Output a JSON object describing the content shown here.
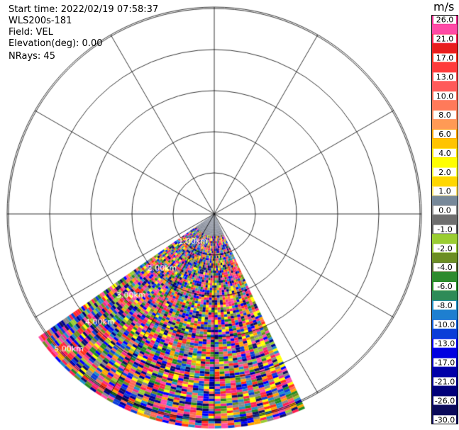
{
  "header": {
    "start_time": "Start time: 2022/02/19 07:58:37",
    "instrument": "WLS200s-181",
    "field": "Field: VEL",
    "elevation": "Elevation(deg): 0.00",
    "nrays": "NRays: 45"
  },
  "colorbar": {
    "unit": "m/s",
    "bins": [
      {
        "label": "26.0",
        "color": "#f02a8f"
      },
      {
        "label": "",
        "color": "#ff4aa6"
      },
      {
        "label": "21.0",
        "color": "#ff1f4f"
      },
      {
        "label": "",
        "color": "#e81e1e"
      },
      {
        "label": "17.0",
        "color": "#ff2e1a"
      },
      {
        "label": "",
        "color": "#ff3b3b"
      },
      {
        "label": "13.0",
        "color": "#ff4a4a"
      },
      {
        "label": "",
        "color": "#ff5a5a"
      },
      {
        "label": "10.0",
        "color": "#ff6a55"
      },
      {
        "label": "",
        "color": "#ff7a5a"
      },
      {
        "label": "8.0",
        "color": "#ff8a60"
      },
      {
        "label": "",
        "color": "#ff9a55"
      },
      {
        "label": "6.0",
        "color": "#ffa500"
      },
      {
        "label": "",
        "color": "#ffc400"
      },
      {
        "label": "4.0",
        "color": "#ffe400"
      },
      {
        "label": "",
        "color": "#ffff00"
      },
      {
        "label": "2.0",
        "color": "#ffff33"
      },
      {
        "label": "",
        "color": "#ffd700"
      },
      {
        "label": "1.0",
        "color": "#ffe066"
      },
      {
        "label": "",
        "color": "#778899"
      },
      {
        "label": "0.0",
        "color": "#8a8a8a"
      },
      {
        "label": "",
        "color": "#6e6e6e"
      },
      {
        "label": "-1.0",
        "color": "#5c5c5c"
      },
      {
        "label": "",
        "color": "#9acd32"
      },
      {
        "label": "-2.0",
        "color": "#8fbf2f"
      },
      {
        "label": "",
        "color": "#6b8e23"
      },
      {
        "label": "-4.0",
        "color": "#556b2f"
      },
      {
        "label": "",
        "color": "#2e8b2e"
      },
      {
        "label": "-6.0",
        "color": "#228b22"
      },
      {
        "label": "",
        "color": "#2e8b57"
      },
      {
        "label": "-8.0",
        "color": "#1e90c8"
      },
      {
        "label": "",
        "color": "#1e7fd0"
      },
      {
        "label": "-10.0",
        "color": "#1060e0"
      },
      {
        "label": "",
        "color": "#0b3dd8"
      },
      {
        "label": "-13.0",
        "color": "#0000ff"
      },
      {
        "label": "",
        "color": "#0000e0"
      },
      {
        "label": "-17.0",
        "color": "#0000c0"
      },
      {
        "label": "",
        "color": "#0000a8"
      },
      {
        "label": "-21.0",
        "color": "#000090"
      },
      {
        "label": "",
        "color": "#00007a"
      },
      {
        "label": "-26.0",
        "color": "#000066"
      },
      {
        "label": "",
        "color": "#0a0a5a"
      },
      {
        "label": "-30.0",
        "color": "#101060"
      }
    ]
  },
  "chart_data": {
    "type": "heatmap",
    "projection": "polar (PPI)",
    "range_rings_km": [
      "1.00km",
      "2.00km",
      "3.00km",
      "4.00km",
      "5.00km"
    ],
    "max_range_km": 5.2,
    "azimuth_deg_span": [
      155,
      235
    ],
    "nrays": 45,
    "field": "VEL",
    "colorscale_palette": [
      "#0000ff",
      "#000090",
      "#101060",
      "#ff2e1a",
      "#ff4aa6",
      "#f02a8f",
      "#ffff00",
      "#ffa500",
      "#228b22",
      "#9acd32",
      "#8a8a8a",
      "#1e90c8",
      "#ff6a55",
      "#6b8e23",
      "#ff1f4f",
      "#0b3dd8"
    ]
  }
}
